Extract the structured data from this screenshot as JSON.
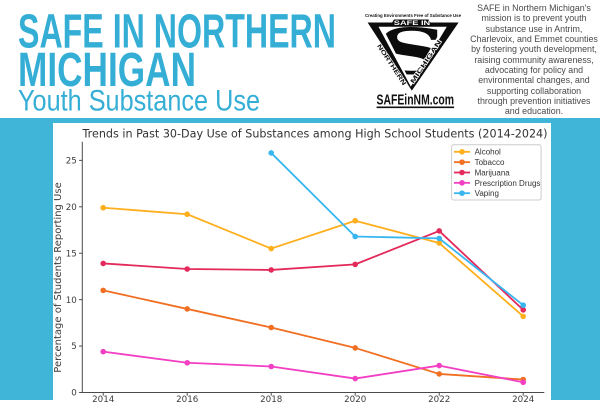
{
  "header": {
    "title_line1": "SAFE IN NORTHERN",
    "title_line2": "MICHIGAN",
    "subtitle": "Youth Substance Use",
    "accent_color": "#35aed6"
  },
  "logo": {
    "tagline": "Creating Environments Free of Substance Use",
    "shield_top_text": "SAFE IN",
    "shield_letter": "S",
    "shield_left_text": "NORTHERN",
    "shield_right_text": "MICHIGAN",
    "website": "SAFEinNM.com"
  },
  "mission": {
    "lines": [
      "SAFE in Northern Michigan's",
      "mission is to prevent youth",
      "substance use in Antrim,",
      "Charlevoix, and Emmet counties",
      "by fostering youth development,",
      "raising community awareness,",
      "advocating for policy and",
      "environmental changes, and",
      "supporting collaboration",
      "through prevention initiatives",
      "and education."
    ]
  },
  "chart_data": {
    "type": "line",
    "title": "Trends in Past 30-Day Use of Substances among High School Students (2014-2024)",
    "xlabel": "",
    "ylabel": "Percentage of Students Reporting Use",
    "x": [
      2014,
      2016,
      2018,
      2020,
      2022,
      2024
    ],
    "yticks": [
      0,
      5,
      10,
      15,
      20,
      25
    ],
    "ylim": [
      0,
      27
    ],
    "grid": false,
    "legend_position": "upper right",
    "series": [
      {
        "name": "Alcohol",
        "color": "#ffae1c",
        "values": [
          19.9,
          19.2,
          15.5,
          18.5,
          16.1,
          8.2
        ]
      },
      {
        "name": "Tobacco",
        "color": "#f06f22",
        "values": [
          11.0,
          9.0,
          7.0,
          4.8,
          2.0,
          1.4
        ]
      },
      {
        "name": "Marijuana",
        "color": "#e4295b",
        "values": [
          13.9,
          13.3,
          13.2,
          13.8,
          17.4,
          8.9
        ]
      },
      {
        "name": "Prescription Drugs",
        "color": "#f23fc3",
        "values": [
          4.4,
          3.2,
          2.8,
          1.5,
          2.9,
          1.1
        ]
      },
      {
        "name": "Vaping",
        "color": "#38b6f0",
        "values": [
          null,
          null,
          25.8,
          16.8,
          16.6,
          9.4
        ]
      }
    ]
  }
}
